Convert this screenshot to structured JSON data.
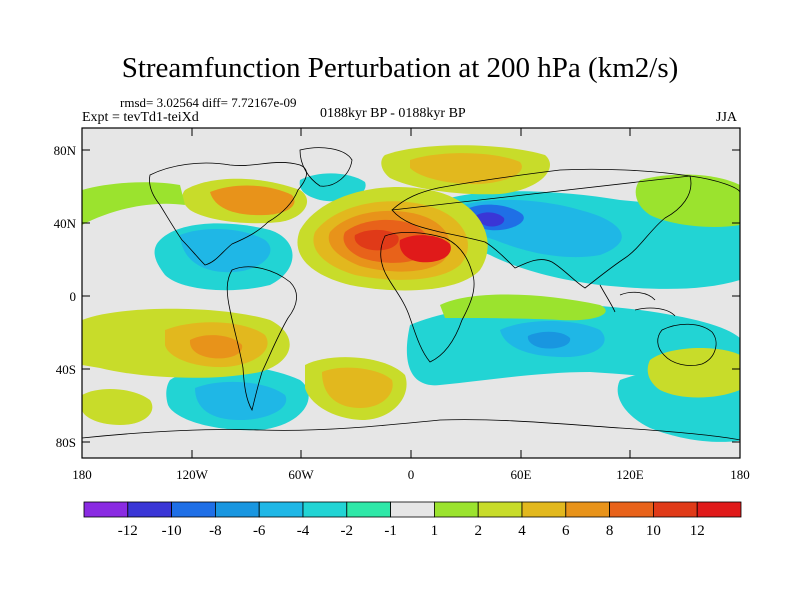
{
  "title": "Streamfunction Perturbation at 200 hPa (km2/s)",
  "stats": {
    "rmsd_text": "rmsd= 3.02564  diff= 7.72167e-09"
  },
  "experiment": "Expt = tevTd1-teiXd",
  "period": "0188kyr BP - 0188kyr BP",
  "season": "JJA",
  "axes": {
    "lat_labels": [
      "80N",
      "40N",
      "0",
      "40S",
      "80S"
    ],
    "lon_labels": [
      "180",
      "120W",
      "60W",
      "0",
      "60E",
      "120E",
      "180"
    ]
  },
  "colorbar": {
    "labels": [
      "-12",
      "-10",
      "-8",
      "-6",
      "-4",
      "-2",
      "-1",
      "1",
      "2",
      "4",
      "6",
      "8",
      "10",
      "12"
    ],
    "colors": [
      "#8a2be2",
      "#3a36d6",
      "#1f6fe6",
      "#1996e0",
      "#1fb7e6",
      "#22d4d4",
      "#2fe8a8",
      "#e6e6e6",
      "#9be32e",
      "#c8dc2a",
      "#e2b81e",
      "#e8931a",
      "#e8621a",
      "#e03a18",
      "#e01a1a"
    ]
  },
  "map_data": {
    "type": "filled-contour",
    "variable": "streamfunction perturbation",
    "level": "200 hPa",
    "units": "km2/s",
    "lat_range": [
      -90,
      90
    ],
    "lon_range": [
      -180,
      180
    ]
  }
}
